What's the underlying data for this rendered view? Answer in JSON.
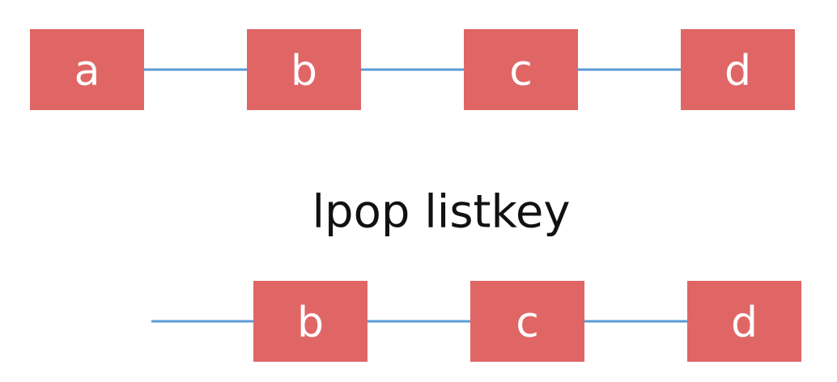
{
  "before_list": {
    "nodes": [
      "a",
      "b",
      "c",
      "d"
    ]
  },
  "command": "lpop listkey",
  "after_list": {
    "nodes": [
      "b",
      "c",
      "d"
    ]
  },
  "colors": {
    "node_fill": "#e06666",
    "node_text": "#ffffff",
    "edge": "#5b9bd5",
    "command_text": "#111111"
  }
}
